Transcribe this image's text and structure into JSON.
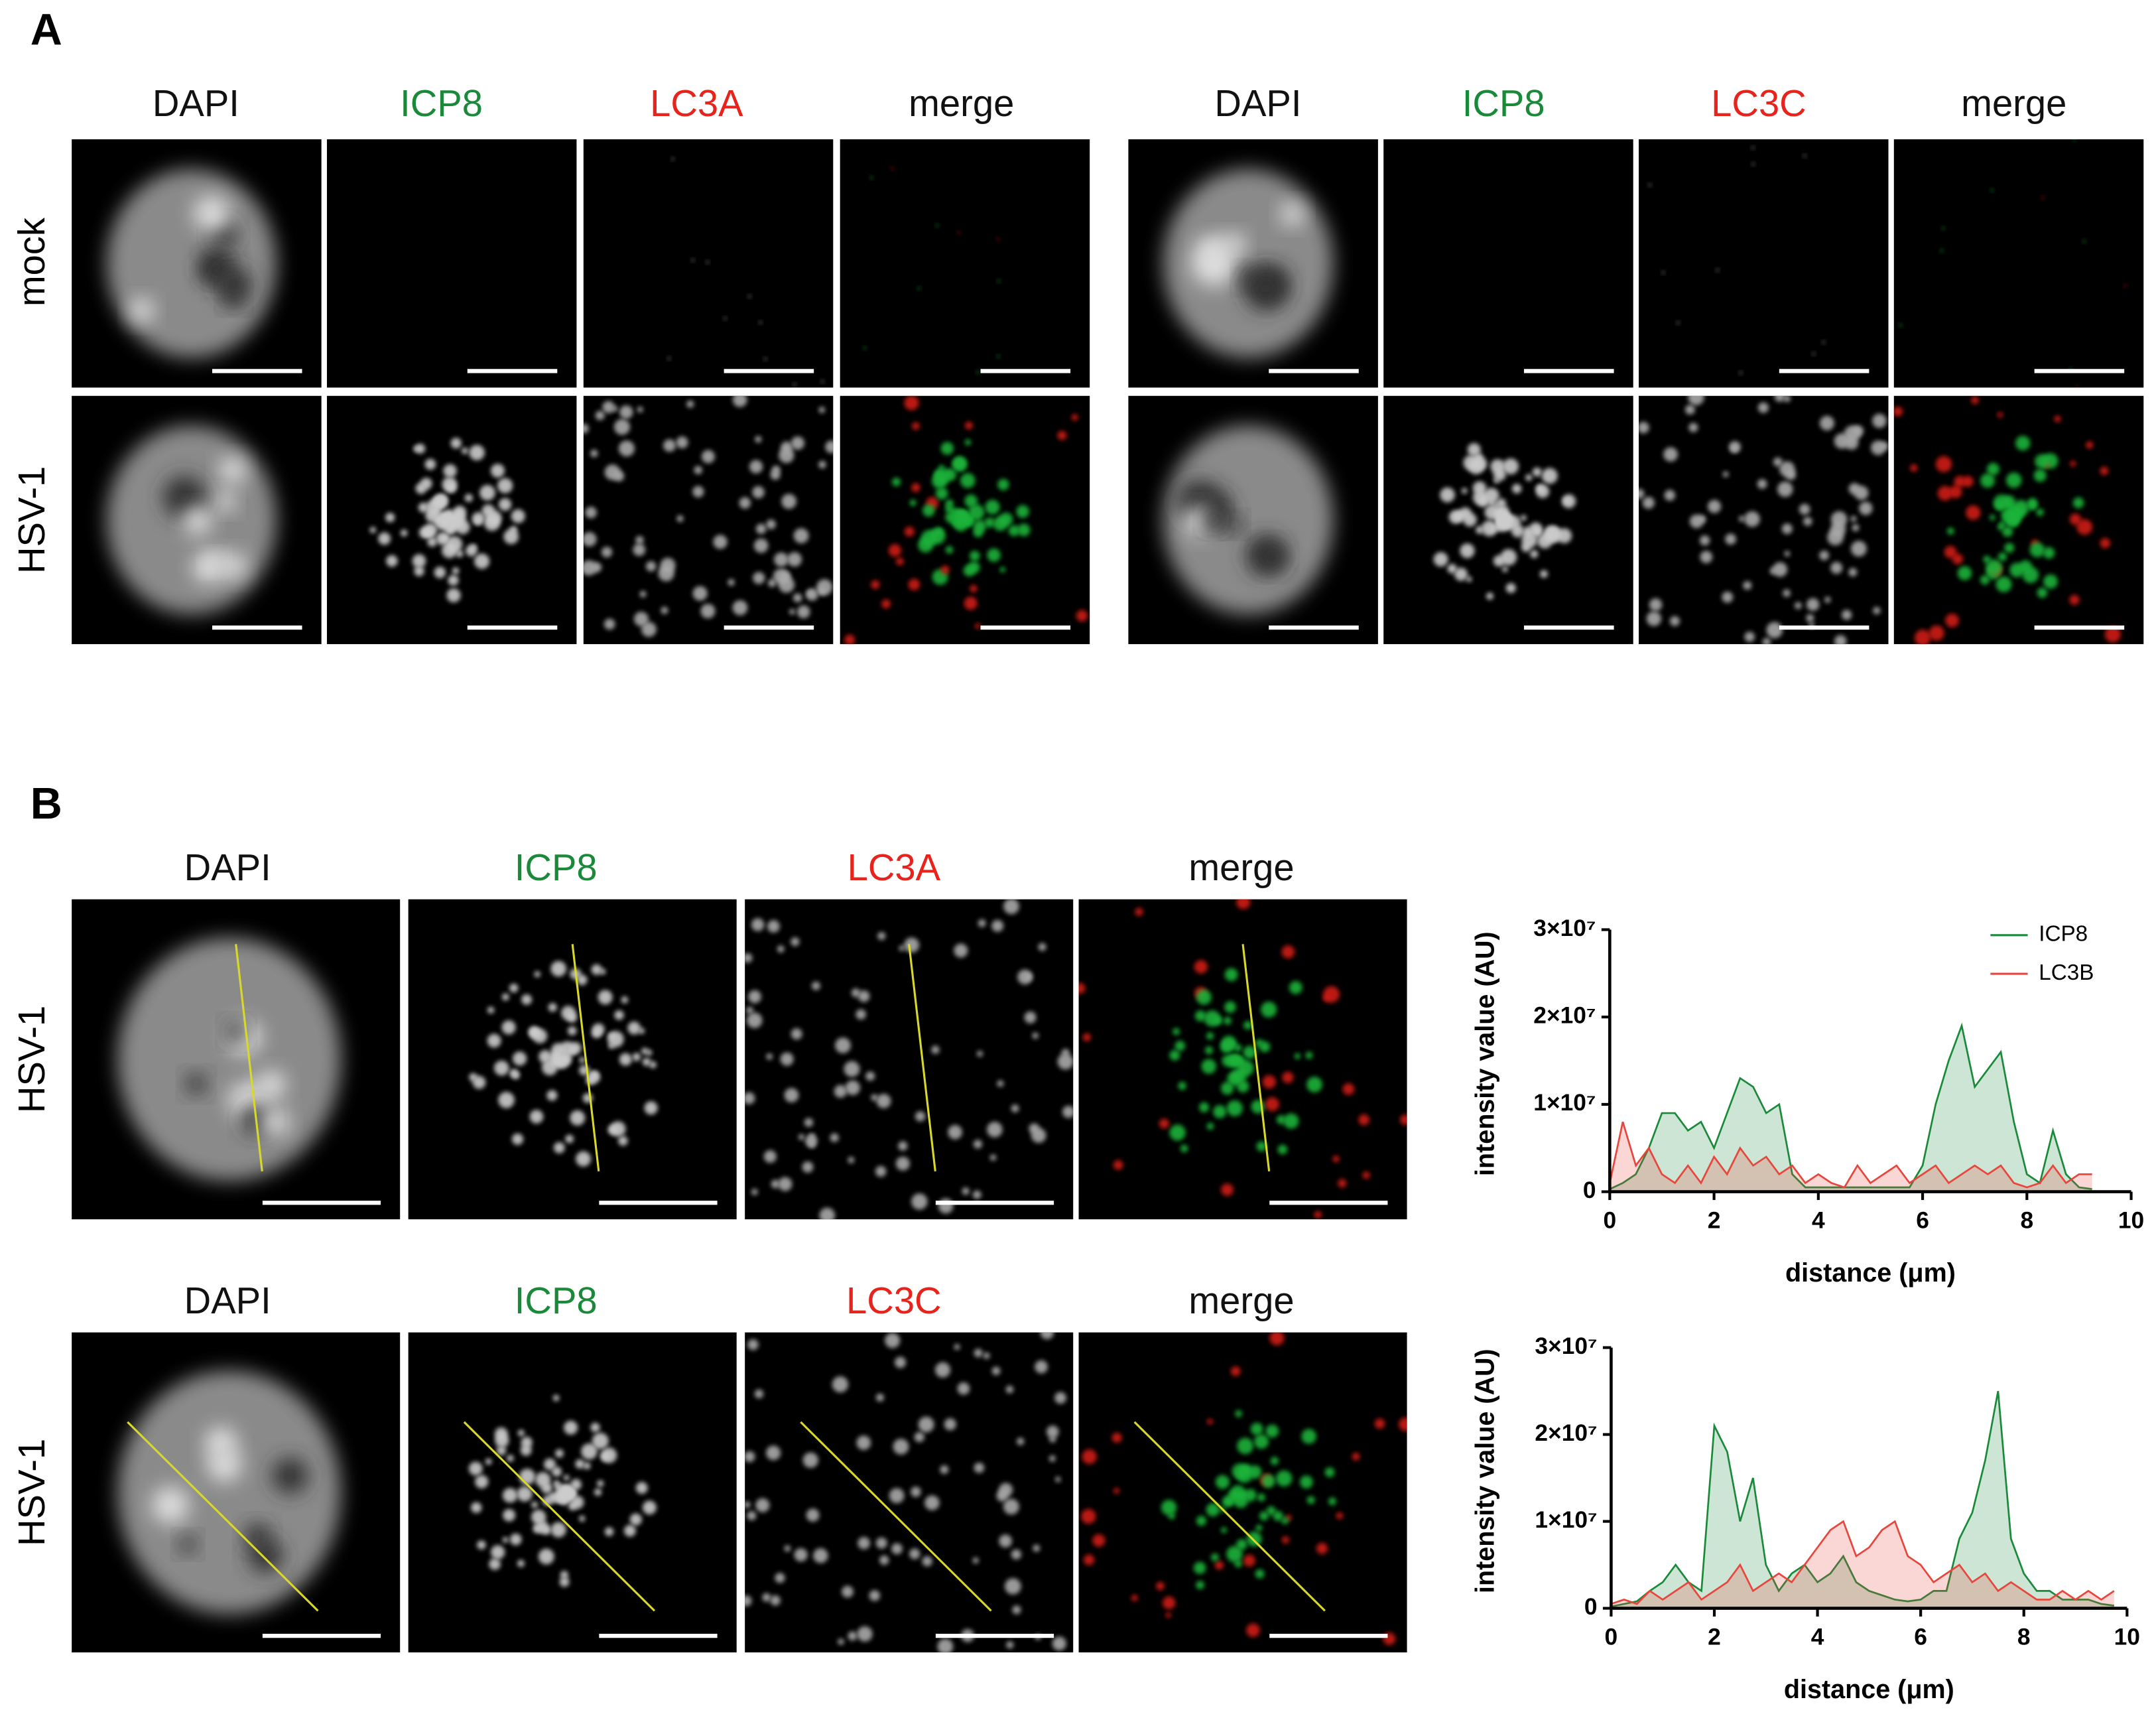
{
  "figure": {
    "panel_a": {
      "label": "A",
      "left_columns": [
        "DAPI",
        "ICP8",
        "LC3A",
        "merge"
      ],
      "right_columns": [
        "DAPI",
        "ICP8",
        "LC3C",
        "merge"
      ],
      "rows": [
        "mock",
        "HSV-1"
      ]
    },
    "panel_b": {
      "label": "B",
      "rows": [
        {
          "label": "HSV-1",
          "columns": [
            "DAPI",
            "ICP8",
            "LC3A",
            "merge"
          ]
        },
        {
          "label": "HSV-1",
          "columns": [
            "DAPI",
            "ICP8",
            "LC3C",
            "merge"
          ]
        }
      ]
    }
  },
  "chart_data": [
    {
      "type": "area",
      "y_label": "intensity value (AU)",
      "x_label": "distance (μm)",
      "xlim": [
        0,
        10
      ],
      "xticks": [
        0,
        2,
        4,
        6,
        8,
        10
      ],
      "ylim": [
        0,
        30000000
      ],
      "yticks": [
        0,
        {
          "value": 10000000,
          "label": "1×10⁷"
        },
        {
          "value": 20000000,
          "label": "2×10⁷"
        },
        {
          "value": 30000000,
          "label": "3×10⁷"
        }
      ],
      "legend": "top-right",
      "x": [
        0,
        0.25,
        0.5,
        0.75,
        1,
        1.25,
        1.5,
        1.75,
        2,
        2.25,
        2.5,
        2.75,
        3,
        3.25,
        3.5,
        3.75,
        4,
        4.25,
        4.5,
        4.75,
        5,
        5.25,
        5.5,
        5.75,
        6,
        6.25,
        6.5,
        6.75,
        7,
        7.25,
        7.5,
        7.75,
        8,
        8.25,
        8.5,
        8.75,
        9,
        9.25
      ],
      "series": [
        {
          "name": "ICP8",
          "color": "#1a8a3a",
          "values": [
            300000,
            1000000,
            2000000,
            5000000,
            9000000,
            9000000,
            7000000,
            8000000,
            5000000,
            9000000,
            13000000,
            12000000,
            9000000,
            10000000,
            2000000,
            500000,
            500000,
            500000,
            500000,
            500000,
            500000,
            500000,
            500000,
            500000,
            3000000,
            10000000,
            15000000,
            19000000,
            12000000,
            14000000,
            16000000,
            8000000,
            2000000,
            1000000,
            7000000,
            2000000,
            500000,
            300000
          ]
        },
        {
          "name": "LC3B",
          "color": "#e8453c",
          "values": [
            1000000,
            8000000,
            3000000,
            5000000,
            2000000,
            1000000,
            3000000,
            1000000,
            4000000,
            2000000,
            5000000,
            3000000,
            4000000,
            2000000,
            3000000,
            1000000,
            2000000,
            1000000,
            500000,
            3000000,
            1000000,
            2000000,
            3000000,
            1000000,
            2000000,
            3000000,
            1000000,
            2000000,
            3000000,
            2000000,
            3000000,
            1000000,
            500000,
            1000000,
            3000000,
            1000000,
            2000000,
            2000000
          ]
        }
      ]
    },
    {
      "type": "area",
      "y_label": "intensity value (AU)",
      "x_label": "distance (μm)",
      "xlim": [
        0,
        10
      ],
      "xticks": [
        0,
        2,
        4,
        6,
        8,
        10
      ],
      "ylim": [
        0,
        30000000
      ],
      "yticks": [
        0,
        {
          "value": 10000000,
          "label": "1×10⁷"
        },
        {
          "value": 20000000,
          "label": "2×10⁷"
        },
        {
          "value": 30000000,
          "label": "3×10⁷"
        }
      ],
      "x": [
        0,
        0.25,
        0.5,
        0.75,
        1,
        1.25,
        1.5,
        1.75,
        2,
        2.25,
        2.5,
        2.75,
        3,
        3.25,
        3.5,
        3.75,
        4,
        4.25,
        4.5,
        4.75,
        5,
        5.25,
        5.5,
        5.75,
        6,
        6.25,
        6.5,
        6.75,
        7,
        7.25,
        7.5,
        7.75,
        8,
        8.25,
        8.5,
        8.75,
        9,
        9.25,
        9.5,
        9.75
      ],
      "series": [
        {
          "color": "#1a8a3a",
          "values": [
            200000,
            500000,
            800000,
            2000000,
            3000000,
            5000000,
            3000000,
            2000000,
            21000000,
            18000000,
            10000000,
            15000000,
            5000000,
            2000000,
            4000000,
            5000000,
            3000000,
            4000000,
            6000000,
            3000000,
            2000000,
            1500000,
            1000000,
            800000,
            1000000,
            2000000,
            2000000,
            8000000,
            11000000,
            17000000,
            25000000,
            8000000,
            4000000,
            2000000,
            2000000,
            1000000,
            1000000,
            1000000,
            500000,
            300000
          ]
        },
        {
          "color": "#e8453c",
          "values": [
            500000,
            1000000,
            500000,
            2000000,
            1000000,
            2000000,
            3000000,
            1000000,
            2000000,
            3000000,
            5000000,
            2000000,
            3000000,
            4000000,
            3000000,
            5000000,
            7000000,
            9000000,
            10000000,
            6000000,
            7000000,
            9000000,
            10000000,
            6000000,
            5000000,
            3000000,
            4000000,
            5000000,
            3000000,
            4000000,
            2000000,
            3000000,
            2000000,
            1000000,
            1000000,
            2000000,
            1000000,
            2000000,
            1000000,
            2000000
          ]
        }
      ]
    }
  ]
}
